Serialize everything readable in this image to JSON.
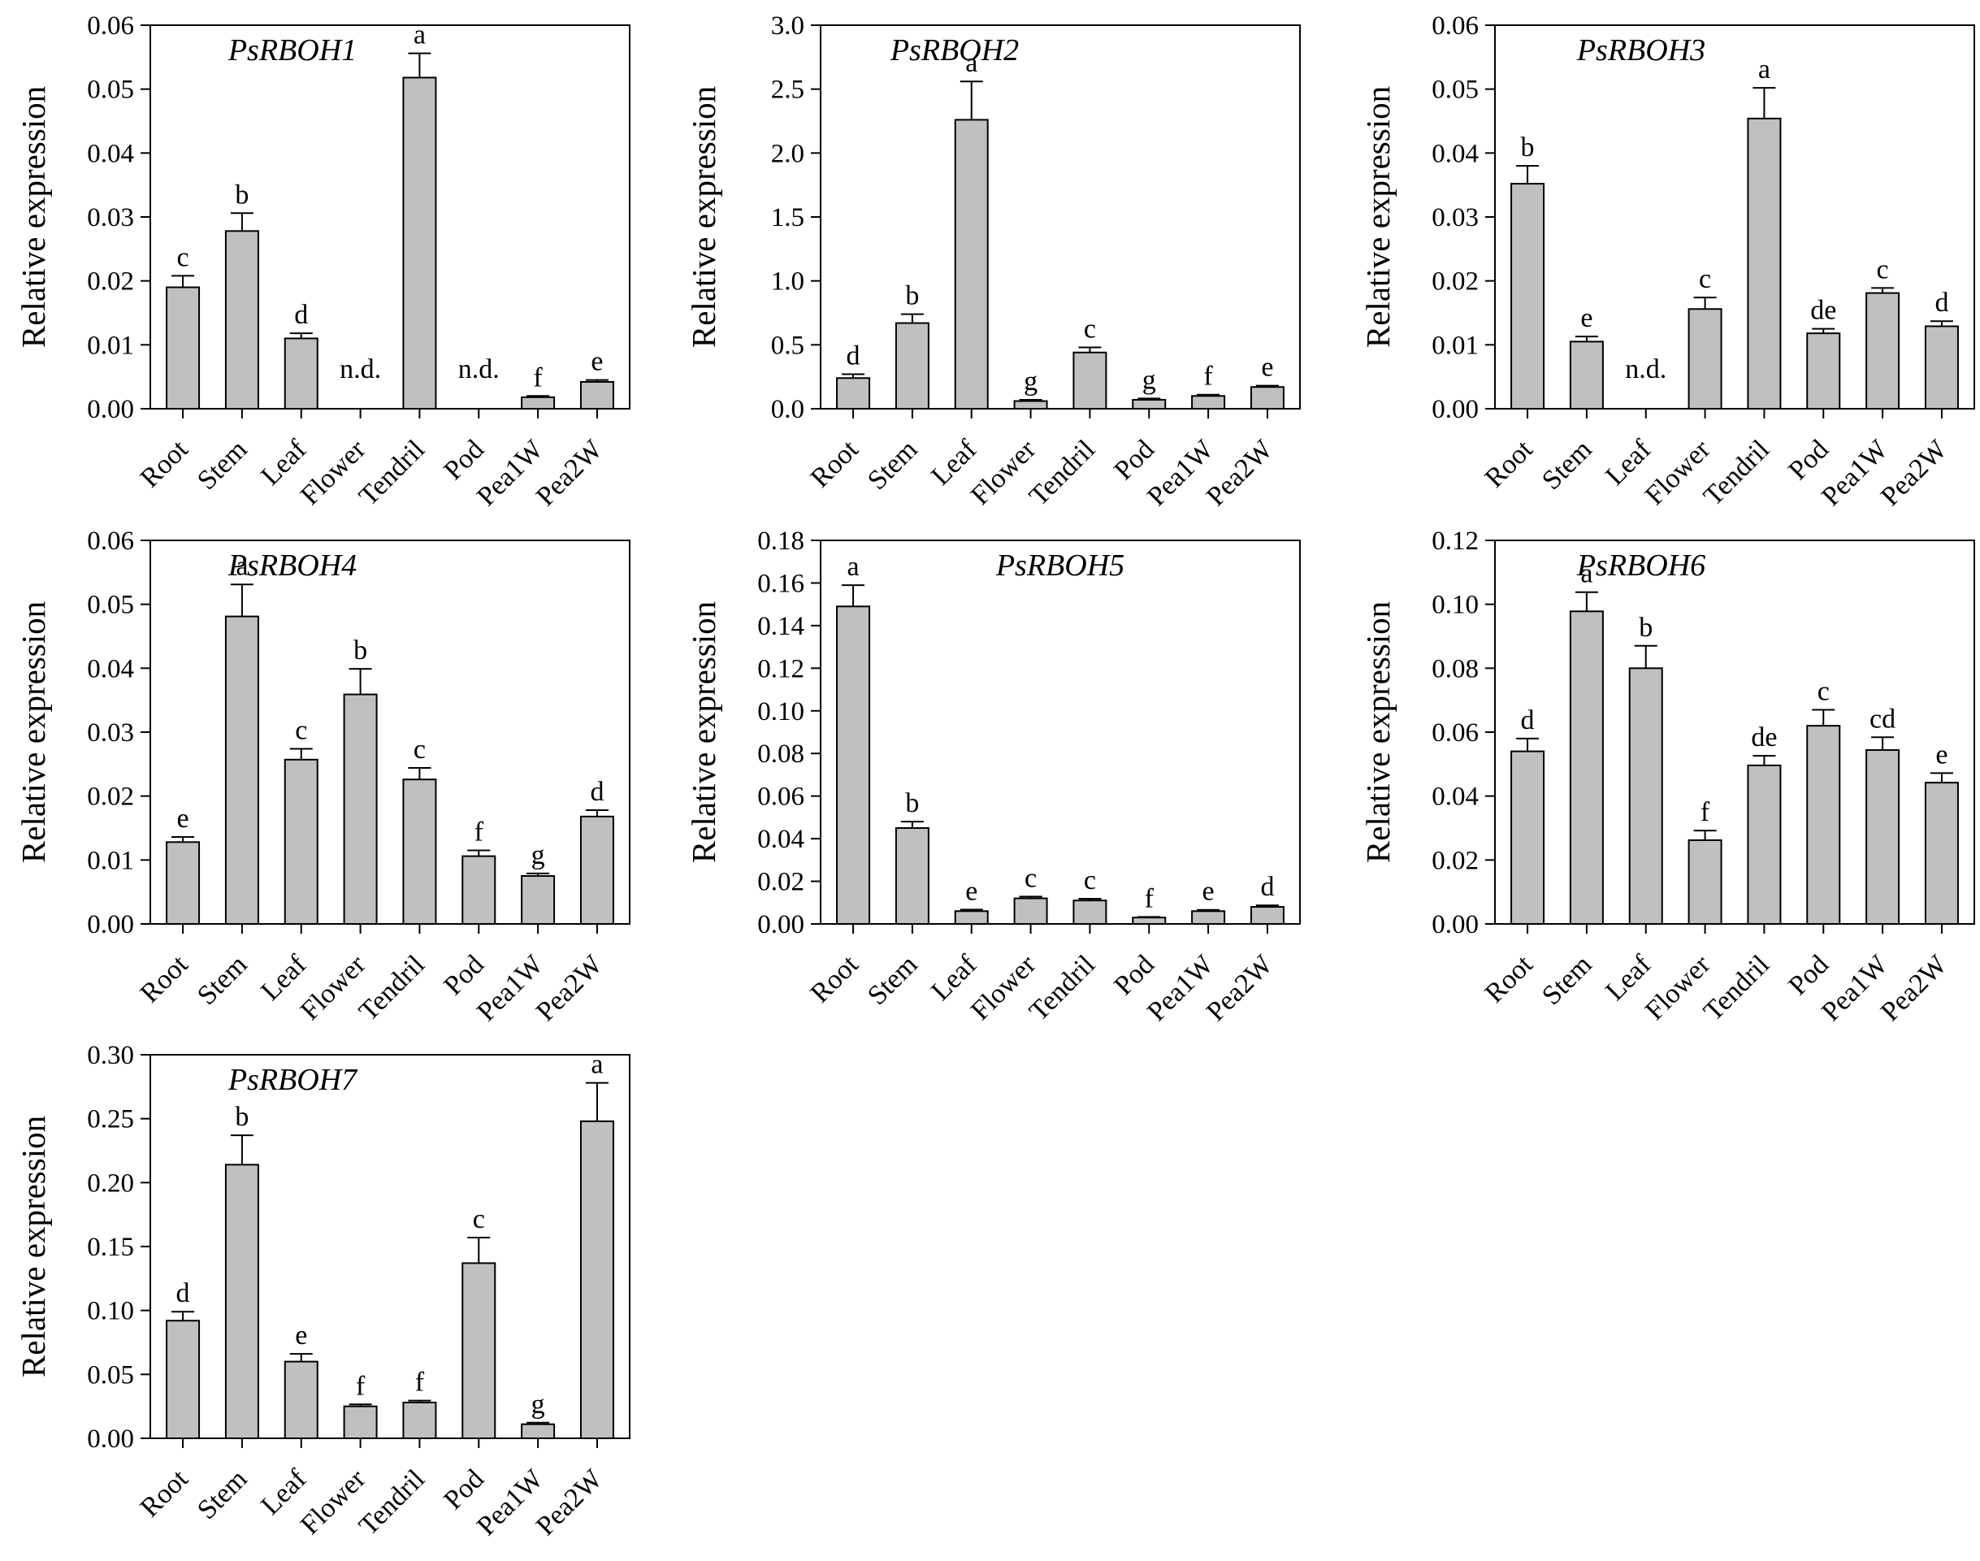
{
  "colors": {
    "bar_fill": "#c0c0c0",
    "stroke": "#000000",
    "background": "#ffffff"
  },
  "chart_data": [
    {
      "type": "bar",
      "title": "PsRBOH1",
      "ylabel": "Relative expression",
      "xlabel": "",
      "categories": [
        "Root",
        "Stem",
        "Leaf",
        "Flower",
        "Tendril",
        "Pod",
        "Pea1W",
        "Pea2W"
      ],
      "values": [
        0.019,
        0.0278,
        0.011,
        null,
        0.0518,
        null,
        0.0018,
        0.0042
      ],
      "errors": [
        0.0018,
        0.0028,
        0.0008,
        null,
        0.0038,
        null,
        0.0002,
        0.0003
      ],
      "labels": [
        "c",
        "b",
        "d",
        "n.d.",
        "a",
        "n.d.",
        "f",
        "e"
      ],
      "ylim": [
        0,
        0.06
      ],
      "yticks": [
        "0.00",
        "0.01",
        "0.02",
        "0.03",
        "0.04",
        "0.05",
        "0.06"
      ],
      "grid": false
    },
    {
      "type": "bar",
      "title": "PsRBOH2",
      "ylabel": "Relative expression",
      "xlabel": "",
      "categories": [
        "Root",
        "Stem",
        "Leaf",
        "Flower",
        "Tendril",
        "Pod",
        "Pea1W",
        "Pea2W"
      ],
      "values": [
        0.24,
        0.67,
        2.26,
        0.06,
        0.44,
        0.07,
        0.1,
        0.17
      ],
      "errors": [
        0.03,
        0.07,
        0.3,
        0.01,
        0.04,
        0.01,
        0.01,
        0.01
      ],
      "labels": [
        "d",
        "b",
        "a",
        "g",
        "c",
        "g",
        "f",
        "e"
      ],
      "ylim": [
        0,
        3.0
      ],
      "yticks": [
        "0.0",
        "0.5",
        "1.0",
        "1.5",
        "2.0",
        "2.5",
        "3.0"
      ],
      "grid": false
    },
    {
      "type": "bar",
      "title": "PsRBOH3",
      "ylabel": "Relative expression",
      "xlabel": "",
      "categories": [
        "Root",
        "Stem",
        "Leaf",
        "Flower",
        "Tendril",
        "Pod",
        "Pea1W",
        "Pea2W"
      ],
      "values": [
        0.0352,
        0.0105,
        null,
        0.0156,
        0.0454,
        0.0118,
        0.0181,
        0.0129
      ],
      "errors": [
        0.0028,
        0.0008,
        null,
        0.0018,
        0.0048,
        0.0007,
        0.0008,
        0.0008
      ],
      "labels": [
        "b",
        "e",
        "n.d.",
        "c",
        "a",
        "de",
        "c",
        "d"
      ],
      "ylim": [
        0,
        0.06
      ],
      "yticks": [
        "0.00",
        "0.01",
        "0.02",
        "0.03",
        "0.04",
        "0.05",
        "0.06"
      ],
      "grid": false
    },
    {
      "type": "bar",
      "title": "PsRBOH4",
      "ylabel": "Relative expression",
      "xlabel": "",
      "categories": [
        "Root",
        "Stem",
        "Leaf",
        "Flower",
        "Tendril",
        "Pod",
        "Pea1W",
        "Pea2W"
      ],
      "values": [
        0.0128,
        0.0481,
        0.0257,
        0.0359,
        0.0226,
        0.0106,
        0.0075,
        0.0168
      ],
      "errors": [
        0.0008,
        0.005,
        0.0017,
        0.004,
        0.0018,
        0.0009,
        0.0004,
        0.001
      ],
      "labels": [
        "e",
        "a",
        "c",
        "b",
        "c",
        "f",
        "g",
        "d"
      ],
      "ylim": [
        0,
        0.06
      ],
      "yticks": [
        "0.00",
        "0.01",
        "0.02",
        "0.03",
        "0.04",
        "0.05",
        "0.06"
      ],
      "grid": false
    },
    {
      "type": "bar",
      "title": "PsRBOH5",
      "ylabel": "Relative expression",
      "xlabel": "",
      "categories": [
        "Root",
        "Stem",
        "Leaf",
        "Flower",
        "Tendril",
        "Pod",
        "Pea1W",
        "Pea2W"
      ],
      "values": [
        0.149,
        0.045,
        0.006,
        0.012,
        0.011,
        0.003,
        0.006,
        0.008
      ],
      "errors": [
        0.01,
        0.003,
        0.0007,
        0.0008,
        0.0008,
        0.0003,
        0.0006,
        0.0007
      ],
      "labels": [
        "a",
        "b",
        "e",
        "c",
        "c",
        "f",
        "e",
        "d"
      ],
      "ylim": [
        0,
        0.18
      ],
      "yticks": [
        "0.00",
        "0.02",
        "0.04",
        "0.06",
        "0.08",
        "0.10",
        "0.12",
        "0.14",
        "0.16",
        "0.18"
      ],
      "grid": false
    },
    {
      "type": "bar",
      "title": "PsRBOH6",
      "ylabel": "Relative expression",
      "xlabel": "",
      "categories": [
        "Root",
        "Stem",
        "Leaf",
        "Flower",
        "Tendril",
        "Pod",
        "Pea1W",
        "Pea2W"
      ],
      "values": [
        0.054,
        0.0978,
        0.08,
        0.0262,
        0.0496,
        0.062,
        0.0544,
        0.0442
      ],
      "errors": [
        0.004,
        0.006,
        0.007,
        0.003,
        0.003,
        0.005,
        0.004,
        0.003
      ],
      "labels": [
        "d",
        "a",
        "b",
        "f",
        "de",
        "c",
        "cd",
        "e"
      ],
      "ylim": [
        0,
        0.12
      ],
      "yticks": [
        "0.00",
        "0.02",
        "0.04",
        "0.06",
        "0.08",
        "0.10",
        "0.12"
      ],
      "grid": false
    },
    {
      "type": "bar",
      "title": "PsRBOH7",
      "ylabel": "Relative expression",
      "xlabel": "",
      "categories": [
        "Root",
        "Stem",
        "Leaf",
        "Flower",
        "Tendril",
        "Pod",
        "Pea1W",
        "Pea2W"
      ],
      "values": [
        0.092,
        0.214,
        0.06,
        0.025,
        0.028,
        0.137,
        0.011,
        0.248
      ],
      "errors": [
        0.007,
        0.023,
        0.006,
        0.0015,
        0.0015,
        0.02,
        0.0012,
        0.03
      ],
      "labels": [
        "d",
        "b",
        "e",
        "f",
        "f",
        "c",
        "g",
        "a"
      ],
      "ylim": [
        0,
        0.3
      ],
      "yticks": [
        "0.00",
        "0.05",
        "0.10",
        "0.15",
        "0.20",
        "0.25",
        "0.30"
      ],
      "grid": false
    }
  ]
}
